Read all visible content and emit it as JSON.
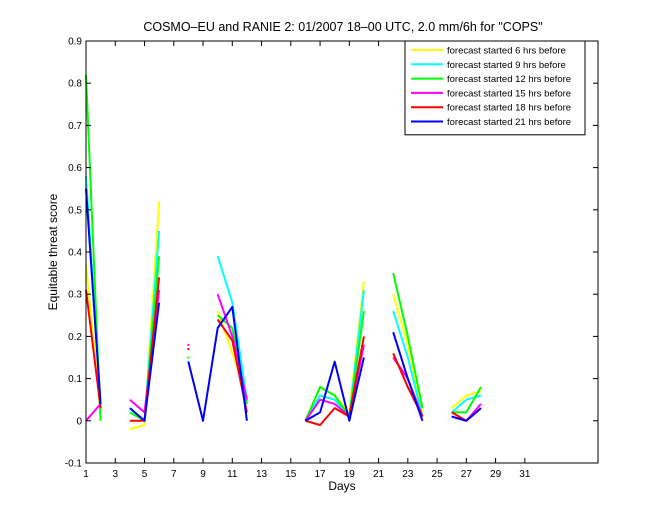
{
  "chart_data": {
    "type": "line",
    "title": "COSMO–EU and RANIE 2: 01/2007 18–00 UTC, 2.0 mm/6h for \"COPS\"",
    "xlabel": "Days",
    "ylabel": "Equitable threat score",
    "xlim": [
      1,
      36
    ],
    "ylim": [
      -0.1,
      0.9
    ],
    "xticks": [
      1,
      3,
      5,
      7,
      9,
      11,
      13,
      15,
      17,
      19,
      21,
      23,
      25,
      27,
      29,
      31
    ],
    "yticks": [
      -0.1,
      0,
      0.1,
      0.2,
      0.3,
      0.4,
      0.5,
      0.6,
      0.7,
      0.8,
      0.9
    ],
    "legend_position": "top-right",
    "grid": false,
    "series": [
      {
        "name": "forecast started 6 hrs before",
        "color": "#ffff00",
        "points": [
          [
            1,
            0.37
          ],
          [
            2,
            0.02
          ],
          null,
          [
            4,
            -0.02
          ],
          [
            5,
            -0.01
          ],
          [
            6,
            0.52
          ],
          null,
          [
            8,
            0.15
          ],
          null,
          [
            10,
            0.26
          ],
          [
            11,
            0.16
          ],
          [
            12,
            0.06
          ],
          null,
          [
            16,
            0.0
          ],
          [
            17,
            0.08
          ],
          [
            18,
            0.06
          ],
          [
            19,
            0.02
          ],
          [
            20,
            0.33
          ],
          null,
          [
            22,
            0.3
          ],
          [
            23,
            0.18
          ],
          [
            24,
            0.02
          ],
          null,
          [
            26,
            0.03
          ],
          [
            27,
            0.06
          ],
          [
            28,
            0.07
          ]
        ]
      },
      {
        "name": "forecast started 9 hrs before",
        "color": "#00ffff",
        "points": [
          [
            1,
            0.58
          ],
          [
            2,
            0.04
          ],
          null,
          [
            4,
            0.03
          ],
          [
            5,
            0.0
          ],
          [
            6,
            0.45
          ],
          null,
          [
            8,
            0.14
          ],
          null,
          [
            10,
            0.39
          ],
          [
            11,
            0.28
          ],
          [
            12,
            0.05
          ],
          null,
          [
            16,
            0.0
          ],
          [
            17,
            0.06
          ],
          [
            18,
            0.05
          ],
          [
            19,
            0.01
          ],
          [
            20,
            0.31
          ],
          null,
          [
            22,
            0.26
          ],
          [
            23,
            0.15
          ],
          [
            24,
            0.01
          ],
          null,
          [
            26,
            0.02
          ],
          [
            27,
            0.05
          ],
          [
            28,
            0.06
          ]
        ]
      },
      {
        "name": "forecast started 12 hrs before",
        "color": "#00ff00",
        "points": [
          [
            1,
            0.82
          ],
          [
            2,
            0.0
          ],
          null,
          [
            4,
            0.02
          ],
          [
            5,
            0.0
          ],
          [
            6,
            0.39
          ],
          null,
          [
            8,
            0.15
          ],
          null,
          [
            10,
            0.25
          ],
          [
            11,
            0.22
          ],
          [
            12,
            0.04
          ],
          null,
          [
            16,
            0.0
          ],
          [
            17,
            0.08
          ],
          [
            18,
            0.06
          ],
          [
            19,
            0.01
          ],
          [
            20,
            0.26
          ],
          null,
          [
            22,
            0.35
          ],
          [
            23,
            0.2
          ],
          [
            24,
            0.03
          ],
          null,
          [
            26,
            0.02
          ],
          [
            27,
            0.02
          ],
          [
            28,
            0.08
          ]
        ]
      },
      {
        "name": "forecast started 15 hrs before",
        "color": "#ff00ff",
        "points": [
          [
            1,
            0.0
          ],
          [
            2,
            0.04
          ],
          null,
          [
            4,
            0.05
          ],
          [
            5,
            0.02
          ],
          [
            6,
            0.31
          ],
          null,
          [
            8,
            0.18
          ],
          null,
          [
            10,
            0.3
          ],
          [
            11,
            0.2
          ],
          [
            12,
            0.05
          ],
          null,
          [
            16,
            0.0
          ],
          [
            17,
            0.05
          ],
          [
            18,
            0.04
          ],
          [
            19,
            0.01
          ],
          [
            20,
            0.18
          ],
          null,
          [
            22,
            0.15
          ],
          [
            23,
            0.1
          ],
          [
            24,
            0.01
          ],
          null,
          [
            26,
            0.01
          ],
          [
            27,
            0.0
          ],
          [
            28,
            0.04
          ]
        ]
      },
      {
        "name": "forecast started 18 hrs before",
        "color": "#ff0000",
        "points": [
          [
            1,
            0.31
          ],
          [
            2,
            0.03
          ],
          null,
          [
            4,
            0.0
          ],
          [
            5,
            0.0
          ],
          [
            6,
            0.34
          ],
          null,
          [
            8,
            0.17
          ],
          null,
          [
            10,
            0.24
          ],
          [
            11,
            0.19
          ],
          [
            12,
            0.02
          ],
          null,
          [
            16,
            0.0
          ],
          [
            17,
            -0.01
          ],
          [
            18,
            0.03
          ],
          [
            19,
            0.01
          ],
          [
            20,
            0.2
          ],
          null,
          [
            22,
            0.16
          ],
          [
            23,
            0.08
          ],
          [
            24,
            0.01
          ],
          null,
          [
            26,
            0.02
          ],
          [
            27,
            0.0
          ],
          [
            28,
            0.03
          ]
        ]
      },
      {
        "name": "forecast started 21 hrs before",
        "color": "#0000ff",
        "points": [
          [
            1,
            0.55
          ],
          [
            2,
            0.04
          ],
          null,
          [
            4,
            0.03
          ],
          [
            5,
            0.0
          ],
          [
            6,
            0.28
          ],
          null,
          [
            8,
            0.14
          ],
          [
            9,
            0.0
          ],
          [
            10,
            0.22
          ],
          [
            11,
            0.27
          ],
          [
            12,
            0.0
          ],
          null,
          [
            16,
            0.0
          ],
          [
            17,
            0.02
          ],
          [
            18,
            0.14
          ],
          [
            19,
            0.0
          ],
          [
            20,
            0.15
          ],
          null,
          [
            22,
            0.21
          ],
          [
            23,
            0.1
          ],
          [
            24,
            0.0
          ],
          null,
          [
            26,
            0.01
          ],
          [
            27,
            0.0
          ],
          [
            28,
            0.03
          ]
        ]
      }
    ]
  }
}
